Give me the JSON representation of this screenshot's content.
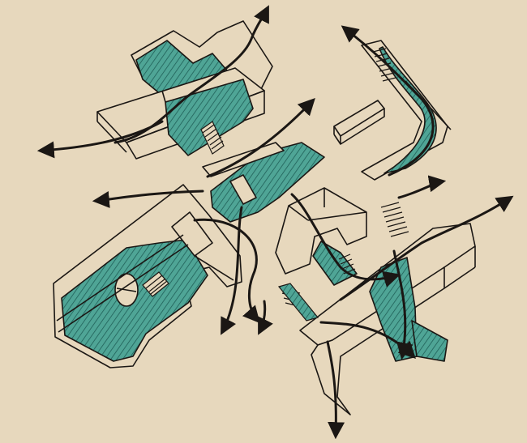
{
  "image": {
    "kind": "hand-drawn axonometric architectural sketch on paper",
    "colors": {
      "paper": "#e7d8bd",
      "ink": "#1b1714",
      "teal_wash": "#4fa596",
      "hatch": "#1f5f57"
    },
    "elements": [
      "building-block-north",
      "building-block-west",
      "building-block-center",
      "building-block-east",
      "building-block-southeast",
      "small-pavilion",
      "stairs",
      "circulation-paths",
      "flow-arrows"
    ]
  }
}
